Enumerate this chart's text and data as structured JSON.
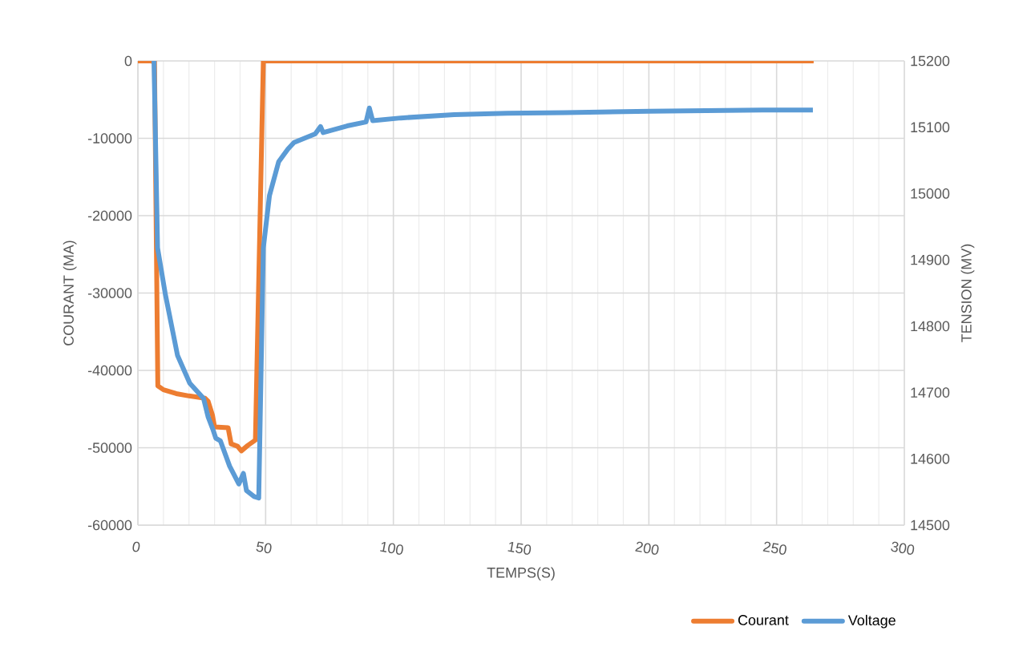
{
  "chart_data": {
    "type": "line",
    "xlabel": "TEMPS(S)",
    "ylabel": "COURANT (MA)",
    "y2label": "TENSION (MV)",
    "xlim": [
      0,
      300
    ],
    "xticks": [
      0,
      50,
      100,
      150,
      200,
      250,
      300
    ],
    "ylim": [
      -60000,
      0
    ],
    "yticks": [
      -60000,
      -50000,
      -40000,
      -30000,
      -20000,
      -10000,
      0
    ],
    "y2lim": [
      14500,
      15200
    ],
    "y2ticks": [
      14500,
      14600,
      14700,
      14800,
      14900,
      15000,
      15100,
      15200
    ],
    "grid": true,
    "legend": "bottom right",
    "marker": "none",
    "line_style": "solid",
    "series": [
      {
        "name": "Courant",
        "color": "#ed7d31",
        "x": [
          0,
          5,
          6.5,
          7.8,
          10,
          15,
          20,
          26.3,
          27.5,
          29.2,
          30,
          35.3,
          36.5,
          39,
          40.5,
          43,
          46,
          49.1,
          50,
          100,
          150,
          200,
          264.5
        ],
        "values": [
          0,
          0,
          -100,
          -42000,
          -42500,
          -43000,
          -43300,
          -43600,
          -44000,
          -45800,
          -47300,
          -47400,
          -49500,
          -49800,
          -50400,
          -49700,
          -49000,
          0,
          0,
          0,
          0,
          0,
          0
        ]
      },
      {
        "name": "Voltage",
        "color": "#5b9bd5",
        "axis": "y2",
        "x": [
          6.3,
          7.7,
          10.7,
          15.5,
          20.3,
          25.7,
          27.5,
          29.3,
          30.5,
          32.3,
          35.9,
          39.5,
          41.3,
          42.5,
          45.5,
          47.3,
          49.1,
          51.5,
          55.1,
          58.7,
          61.1,
          69.4,
          71.5,
          72.5,
          81.9,
          89.3,
          90.6,
          91.9,
          102.9,
          123.8,
          144.6,
          167.2,
          200.4,
          244.4,
          264.2
        ],
        "values": [
          15200,
          14918,
          14849,
          14756,
          14714,
          14691,
          14663,
          14645,
          14631,
          14627,
          14589,
          14562,
          14578,
          14552,
          14543,
          14541,
          14918,
          14997,
          15048,
          15067,
          15077,
          15090,
          15101,
          15092,
          15102,
          15108,
          15129,
          15110,
          15114,
          15119,
          15121,
          15122,
          15124,
          15126,
          15126
        ]
      }
    ]
  }
}
